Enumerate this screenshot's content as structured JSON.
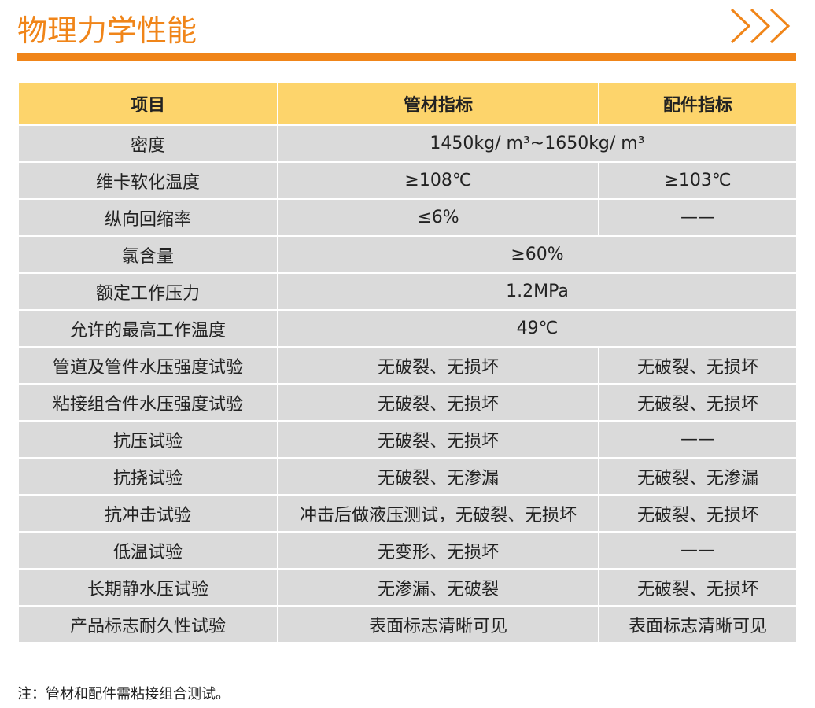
{
  "header": {
    "title": "物理力学性能"
  },
  "table": {
    "columns": [
      "项目",
      "管材指标",
      "配件指标"
    ],
    "rows": [
      [
        "密度",
        "1450kg/ m³~1650kg/ m³"
      ],
      [
        "维卡软化温度",
        "≥108℃",
        "≥103℃"
      ],
      [
        "纵向回缩率",
        "≤6%",
        "——"
      ],
      [
        "氯含量",
        "≥60%"
      ],
      [
        "额定工作压力",
        "1.2MPa"
      ],
      [
        "允许的最高工作温度",
        "49℃"
      ],
      [
        "管道及管件水压强度试验",
        "无破裂、无损坏",
        "无破裂、无损坏"
      ],
      [
        "粘接组合件水压强度试验",
        "无破裂、无损坏",
        "无破裂、无损坏"
      ],
      [
        "抗压试验",
        "无破裂、无损坏",
        "——"
      ],
      [
        "抗挠试验",
        "无破裂、无渗漏",
        "无破裂、无渗漏"
      ],
      [
        "抗冲击试验",
        "冲击后做液压测试，无破裂、无损坏",
        "无破裂、无损坏"
      ],
      [
        "低温试验",
        "无变形、无损坏",
        "——"
      ],
      [
        "长期静水压试验",
        "无渗漏、无破裂",
        "无破裂、无损坏"
      ],
      [
        "产品标志耐久性试验",
        "表面标志清晰可见",
        "表面标志清晰可见"
      ]
    ]
  },
  "note": "注：管材和配件需粘接组合测试。"
}
